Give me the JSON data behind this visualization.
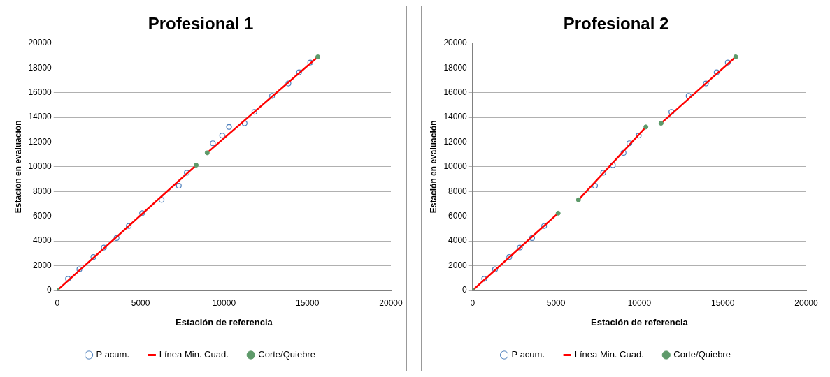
{
  "chart_data": [
    {
      "type": "scatter",
      "title": "Profesional 1",
      "xlabel": "Estación de referencia",
      "ylabel": "Estación en evaluación",
      "xlim": [
        0,
        20000
      ],
      "xticks": [
        0,
        5000,
        10000,
        15000,
        20000
      ],
      "ylim": [
        0,
        20000
      ],
      "yticks": [
        0,
        2000,
        4000,
        6000,
        8000,
        10000,
        12000,
        14000,
        16000,
        18000,
        20000
      ],
      "grid": "y",
      "legend": "bottom",
      "series": [
        {
          "name": "P acum.",
          "marker": "circle",
          "color": "#4f81bd",
          "x": [
            650,
            1330,
            2170,
            2800,
            3560,
            4290,
            5090,
            6260,
            7290,
            7770,
            9330,
            9890,
            10300,
            11230,
            11820,
            12880,
            13860,
            14500,
            15170
          ],
          "values": [
            940,
            1710,
            2700,
            3470,
            4240,
            5210,
            6250,
            7320,
            8470,
            9520,
            11900,
            12530,
            13220,
            13520,
            14440,
            15730,
            16740,
            17640,
            18430
          ]
        },
        {
          "name": "Línea Min. Cuad.",
          "type": "line",
          "marker": "none",
          "color": "#ff0000",
          "x": [
            0,
            8330
          ],
          "values": [
            0,
            10130
          ]
        },
        {
          "type": "line",
          "marker": "none",
          "color": "#ff0000",
          "x": [
            8990,
            15620
          ],
          "values": [
            11130,
            18890
          ]
        },
        {
          "name": "Corte/Quiebre",
          "marker": "circle",
          "color": "#5e9a6a",
          "x": [
            0,
            8330,
            8990,
            15620
          ],
          "values": [
            0,
            10130,
            11130,
            18890
          ]
        }
      ]
    },
    {
      "type": "scatter",
      "title": "Profesional 2",
      "xlabel": "Estación de referencia",
      "ylabel": "Estación en evaluación",
      "xlim": [
        0,
        20000
      ],
      "xticks": [
        0,
        5000,
        10000,
        15000,
        20000
      ],
      "ylim": [
        0,
        20000
      ],
      "yticks": [
        0,
        2000,
        4000,
        6000,
        8000,
        10000,
        12000,
        14000,
        16000,
        18000,
        20000
      ],
      "grid": "y",
      "legend": "bottom",
      "series": [
        {
          "name": "P acum.",
          "marker": "circle",
          "color": "#4f81bd",
          "x": [
            700,
            1350,
            2200,
            2840,
            3570,
            4290,
            7340,
            7830,
            8410,
            9050,
            9400,
            9960,
            11920,
            12950,
            13990,
            14630,
            15300
          ],
          "values": [
            940,
            1710,
            2700,
            3470,
            4240,
            5210,
            8470,
            9520,
            10130,
            11130,
            11900,
            12530,
            14440,
            15730,
            16740,
            17640,
            18430
          ]
        },
        {
          "name": "Línea Min. Cuad.",
          "type": "line",
          "marker": "none",
          "color": "#ff0000",
          "x": [
            0,
            5130
          ],
          "values": [
            0,
            6250
          ]
        },
        {
          "type": "line",
          "marker": "none",
          "color": "#ff0000",
          "x": [
            6350,
            10390
          ],
          "values": [
            7320,
            13220
          ]
        },
        {
          "type": "line",
          "marker": "none",
          "color": "#ff0000",
          "x": [
            11300,
            15770
          ],
          "values": [
            13520,
            18890
          ]
        },
        {
          "name": "Corte/Quiebre",
          "marker": "circle",
          "color": "#5e9a6a",
          "x": [
            0,
            5130,
            6350,
            10390,
            11300,
            15770
          ],
          "values": [
            0,
            6250,
            7320,
            13220,
            13520,
            18890
          ]
        }
      ]
    }
  ]
}
